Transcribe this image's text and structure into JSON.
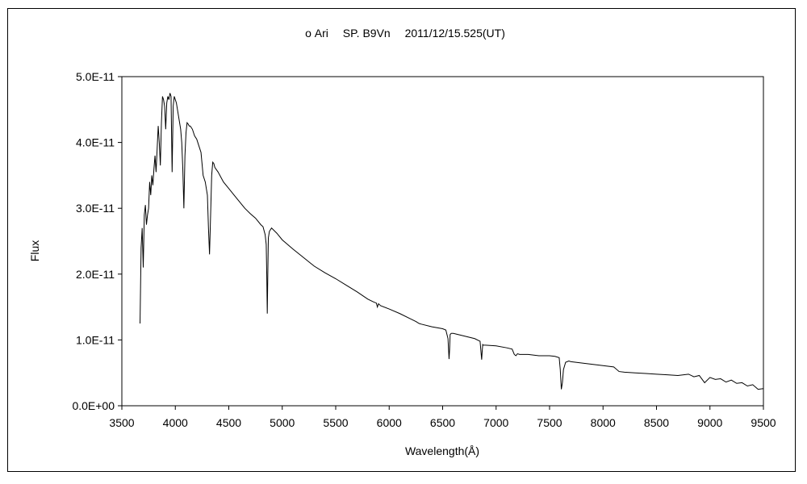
{
  "chart_data": {
    "type": "line",
    "title": "ο Ari　 SP. B9Vn　 2011/12/15.525(UT)",
    "xlabel": "Wavelength(Å)",
    "ylabel": "Flux",
    "xlim": [
      3500,
      9500
    ],
    "ylim": [
      0,
      5e-11
    ],
    "x_ticks": [
      3500,
      4000,
      4500,
      5000,
      5500,
      6000,
      6500,
      7000,
      7500,
      8000,
      8500,
      9000,
      9500
    ],
    "x_tick_labels": [
      "3500",
      "4000",
      "4500",
      "5000",
      "5500",
      "6000",
      "6500",
      "7000",
      "7500",
      "8000",
      "8500",
      "9000",
      "9500"
    ],
    "y_ticks": [
      0,
      1e-11,
      2e-11,
      3e-11,
      4e-11,
      5e-11
    ],
    "y_tick_labels": [
      "0.0E+00",
      "1.0E-11",
      "2.0E-11",
      "3.0E-11",
      "4.0E-11",
      "5.0E-11"
    ],
    "grid": false,
    "legend": "none",
    "line_color": "#000000",
    "series": [
      {
        "x": [
          3670,
          3680,
          3690,
          3700,
          3710,
          3720,
          3730,
          3740,
          3750,
          3760,
          3770,
          3780,
          3790,
          3800,
          3810,
          3820,
          3830,
          3840,
          3850,
          3860,
          3870,
          3880,
          3890,
          3900,
          3910,
          3920,
          3930,
          3940,
          3950,
          3960,
          3970,
          3980,
          3990,
          4000,
          4010,
          4020,
          4030,
          4040,
          4050,
          4060,
          4070,
          4080,
          4090,
          4100,
          4110,
          4120,
          4130,
          4140,
          4160,
          4180,
          4200,
          4220,
          4240,
          4260,
          4280,
          4300,
          4310,
          4320,
          4330,
          4340,
          4350,
          4360,
          4370,
          4400,
          4450,
          4500,
          4550,
          4600,
          4650,
          4700,
          4750,
          4800,
          4820,
          4840,
          4850,
          4855,
          4860,
          4865,
          4870,
          4880,
          4900,
          4950,
          5000,
          5100,
          5200,
          5300,
          5400,
          5500,
          5600,
          5700,
          5800,
          5850,
          5880,
          5890,
          5900,
          5920,
          6000,
          6100,
          6200,
          6250,
          6280,
          6300,
          6400,
          6500,
          6530,
          6550,
          6560,
          6565,
          6570,
          6580,
          6600,
          6700,
          6800,
          6850,
          6865,
          6870,
          6875,
          6880,
          6900,
          7000,
          7100,
          7150,
          7170,
          7185,
          7200,
          7220,
          7300,
          7400,
          7500,
          7550,
          7590,
          7600,
          7610,
          7620,
          7630,
          7650,
          7680,
          7700,
          7800,
          7900,
          8000,
          8100,
          8150,
          8200,
          8300,
          8400,
          8500,
          8600,
          8700,
          8800,
          8850,
          8900,
          8950,
          9000,
          9050,
          9100,
          9150,
          9200,
          9250,
          9300,
          9350,
          9400,
          9450,
          9500
        ],
        "y": [
          1.25e-11,
          2.4e-11,
          2.7e-11,
          2.1e-11,
          2.9e-11,
          3.05e-11,
          2.75e-11,
          2.9e-11,
          3e-11,
          3.4e-11,
          3.2e-11,
          3.5e-11,
          3.35e-11,
          3.6e-11,
          3.8e-11,
          3.55e-11,
          3.9e-11,
          4.25e-11,
          4e-11,
          3.65e-11,
          4.3e-11,
          4.7e-11,
          4.65e-11,
          4.55e-11,
          4.2e-11,
          4.6e-11,
          4.7e-11,
          4.65e-11,
          4.75e-11,
          4.7e-11,
          3.55e-11,
          4.55e-11,
          4.7e-11,
          4.65e-11,
          4.6e-11,
          4.5e-11,
          4.4e-11,
          4.3e-11,
          4.2e-11,
          4e-11,
          3.6e-11,
          3e-11,
          3.8e-11,
          4.15e-11,
          4.3e-11,
          4.28e-11,
          4.25e-11,
          4.25e-11,
          4.2e-11,
          4.1e-11,
          4.05e-11,
          3.95e-11,
          3.85e-11,
          3.5e-11,
          3.4e-11,
          3.2e-11,
          2.7e-11,
          2.3e-11,
          2.9e-11,
          3.5e-11,
          3.7e-11,
          3.68e-11,
          3.62e-11,
          3.55e-11,
          3.4e-11,
          3.3e-11,
          3.2e-11,
          3.1e-11,
          3e-11,
          2.92e-11,
          2.85e-11,
          2.75e-11,
          2.72e-11,
          2.6e-11,
          2.45e-11,
          2e-11,
          1.4e-11,
          2e-11,
          2.55e-11,
          2.65e-11,
          2.7e-11,
          2.62e-11,
          2.52e-11,
          2.38e-11,
          2.25e-11,
          2.12e-11,
          2.02e-11,
          1.93e-11,
          1.83e-11,
          1.73e-11,
          1.62e-11,
          1.58e-11,
          1.56e-11,
          1.5e-11,
          1.55e-11,
          1.52e-11,
          1.47e-11,
          1.4e-11,
          1.32e-11,
          1.28e-11,
          1.25e-11,
          1.24e-11,
          1.2e-11,
          1.17e-11,
          1.15e-11,
          1.02e-11,
          7.1e-12,
          8.5e-12,
          1.08e-11,
          1.1e-11,
          1.1e-11,
          1.06e-11,
          1.02e-11,
          9.8e-12,
          7e-12,
          8.3e-12,
          9.3e-12,
          9.2e-12,
          9.2e-12,
          9.1e-12,
          8.8e-12,
          8.6e-12,
          7.8e-12,
          7.6e-12,
          7.9e-12,
          7.8e-12,
          7.8e-12,
          7.6e-12,
          7.6e-12,
          7.5e-12,
          7.3e-12,
          5.5e-12,
          2.5e-12,
          3.5e-12,
          5.5e-12,
          6.6e-12,
          6.8e-12,
          6.7e-12,
          6.5e-12,
          6.3e-12,
          6.1e-12,
          5.9e-12,
          5.2e-12,
          5.1e-12,
          5e-12,
          4.9e-12,
          4.8e-12,
          4.7e-12,
          4.6e-12,
          4.8e-12,
          4.4e-12,
          4.6e-12,
          3.5e-12,
          4.3e-12,
          4e-12,
          4.1e-12,
          3.6e-12,
          3.9e-12,
          3.4e-12,
          3.5e-12,
          3e-12,
          3.2e-12,
          2.5e-12,
          2.6e-12
        ]
      }
    ]
  }
}
